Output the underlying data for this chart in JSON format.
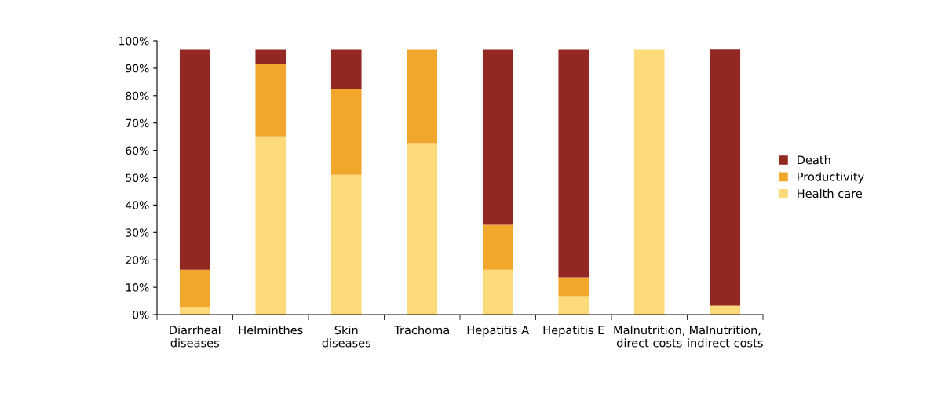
{
  "chart_data": {
    "type": "bar",
    "stacked": true,
    "categories": [
      "Diarrheal\ndiseases",
      "Helminthes",
      "Skin\ndiseases",
      "Trachoma",
      "Hepatitis A",
      "Hepatitis E",
      "Malnutrition,\ndirect costs",
      "Malnutrition,\nindirect costs"
    ],
    "series": [
      {
        "name": "Health care",
        "color": "#fddb7a",
        "values": [
          2.8,
          65.1,
          51.1,
          62.6,
          16.4,
          6.7,
          96.7,
          3.1
        ]
      },
      {
        "name": "Productivity",
        "color": "#f1a72c",
        "values": [
          13.6,
          26.4,
          31.2,
          34.1,
          16.4,
          6.9,
          0,
          0.2
        ]
      },
      {
        "name": "Death",
        "color": "#932823",
        "values": [
          80.3,
          5.2,
          14.4,
          0,
          63.9,
          83.1,
          0,
          93.5
        ]
      }
    ],
    "ylim": [
      0,
      100
    ],
    "yticks": [
      {
        "value": 0,
        "label": "0%"
      },
      {
        "value": 10,
        "label": "10%"
      },
      {
        "value": 20,
        "label": "20%"
      },
      {
        "value": 30,
        "label": "30%"
      },
      {
        "value": 40,
        "label": "40%"
      },
      {
        "value": 50,
        "label": "50%"
      },
      {
        "value": 60,
        "label": "60%"
      },
      {
        "value": 70,
        "label": "70%"
      },
      {
        "value": 80,
        "label": "80%"
      },
      {
        "value": 90,
        "label": "90%"
      },
      {
        "value": 100,
        "label": "100%"
      }
    ],
    "grid": false,
    "legend": "right"
  }
}
